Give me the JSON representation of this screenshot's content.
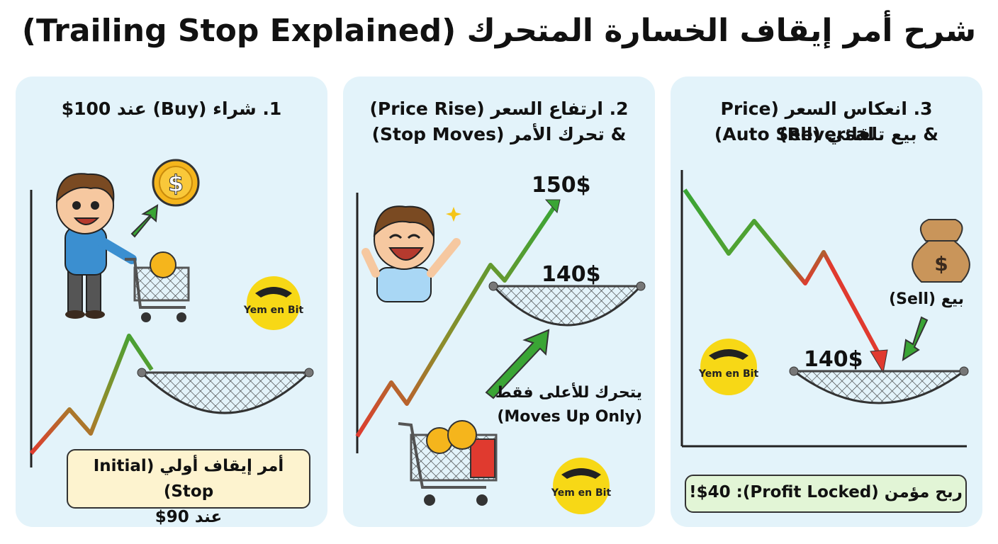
{
  "title": "شرح أمر إيقاف الخسارة المتحرك (Trailing Stop Explained)",
  "panels": [
    {
      "title_lines": [
        "1. شراء (Buy) عند 100$"
      ],
      "callout_lines": [
        "أمر إيقاف أولي (Initial Stop)",
        "عند 90$"
      ],
      "logo": "Yem en Bit"
    },
    {
      "title_lines": [
        "2. ارتفاع السعر (Price Rise)",
        "& تحرك الأمر (Stop Moves)"
      ],
      "price_high": "150$",
      "price_stop": "140$",
      "note_lines": [
        "يتحرك للأعلى فقط",
        "(Moves Up Only)"
      ],
      "logo": "Yem en Bit"
    },
    {
      "title_lines": [
        "3. انعكاس السعر (Price Reversal)",
        "& بيع تلقائي (Auto Sell)"
      ],
      "sell_label": "(Sell) بيع",
      "price_stop": "140$",
      "callout": "ربح مؤمن (Profit Locked): $40!",
      "logo": "Yem en Bit"
    }
  ],
  "colors": {
    "panel_bg": "#e3f3fa",
    "rise": "#3aa535",
    "fall": "#e03a2f",
    "callout_yellow": "#fdf3cf",
    "callout_green": "#e2f5d6",
    "coin": "#f5b51c",
    "logo_bg": "#f7d816"
  },
  "icons": [
    "dollar-coin-icon",
    "shopping-cart-icon",
    "safety-net-icon",
    "money-bag-icon",
    "sparkle-icon",
    "yemenbit-logo"
  ]
}
